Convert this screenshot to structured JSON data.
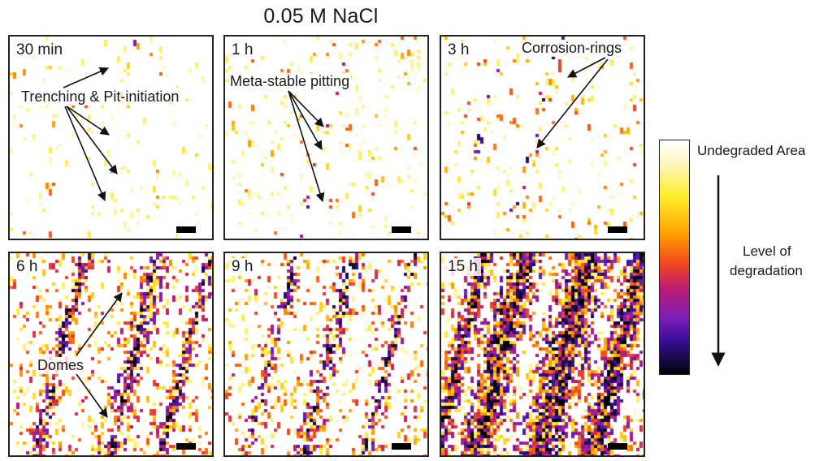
{
  "figure": {
    "title": "0.05 M NaCl",
    "panels": [
      {
        "time": "30 min",
        "degradation_level": 0.03
      },
      {
        "time": "1 h",
        "degradation_level": 0.05
      },
      {
        "time": "3 h",
        "degradation_level": 0.08
      },
      {
        "time": "6 h",
        "degradation_level": 0.35
      },
      {
        "time": "9 h",
        "degradation_level": 0.28
      },
      {
        "time": "15 h",
        "degradation_level": 0.55
      }
    ],
    "annotations": {
      "trenching": "Trenching & Pit-initiation",
      "metastable": "Meta-stable pitting",
      "rings": "Corrosion-rings",
      "domes": "Domes"
    },
    "colorbar": {
      "top_label": "Undegraded Area",
      "axis_label_line1": "Level of",
      "axis_label_line2": "degradation",
      "colormap": [
        "#ffffff",
        "#fdf6bf",
        "#ffed2a",
        "#ffa000",
        "#f44a1c",
        "#b91b77",
        "#7b1fb8",
        "#3c0f9c",
        "#120a3a",
        "#000000"
      ]
    }
  }
}
